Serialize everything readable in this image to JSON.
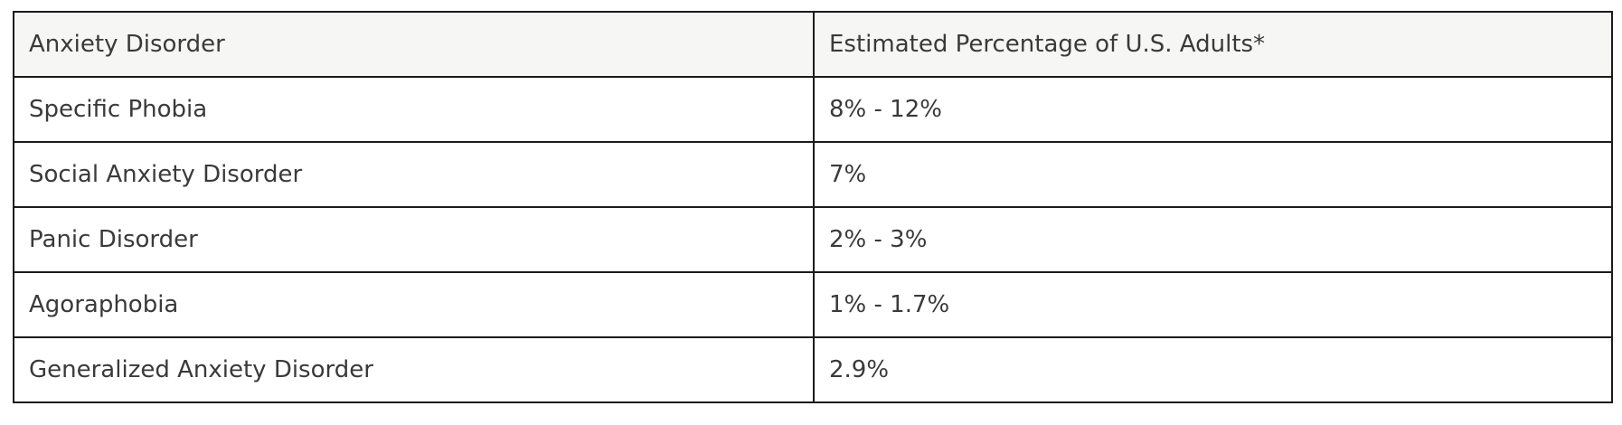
{
  "table": {
    "headers": [
      "Anxiety Disorder",
      "Estimated Percentage of U.S. Adults*"
    ],
    "rows": [
      [
        "Specific Phobia",
        "8% - 12%"
      ],
      [
        "Social Anxiety Disorder",
        "7%"
      ],
      [
        "Panic Disorder",
        "2% - 3%"
      ],
      [
        "Agoraphobia",
        "1% - 1.7%"
      ],
      [
        "Generalized Anxiety Disorder",
        "2.9%"
      ]
    ]
  },
  "colors": {
    "header_background": "#f6f6f4",
    "border": "#1b1b1b",
    "text": "#3a3a3a"
  }
}
